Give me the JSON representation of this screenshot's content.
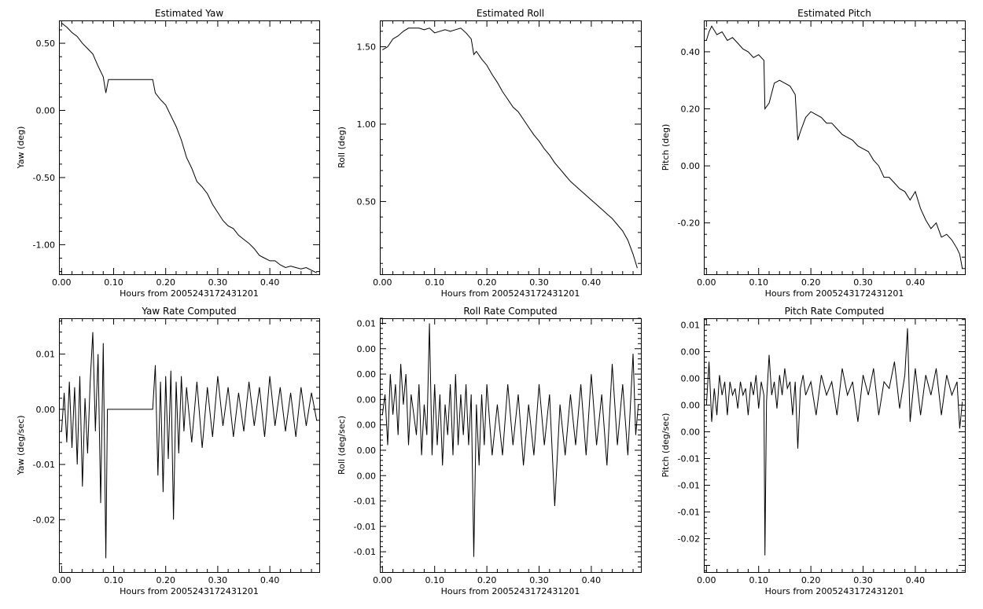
{
  "chart_data": [
    {
      "type": "line",
      "title": "Estimated Yaw",
      "xlabel": "Hours from 2005243172431201",
      "ylabel": "Yaw (deg)",
      "xlim": [
        -0.005,
        0.495
      ],
      "ylim": [
        -1.22,
        0.67
      ],
      "xticks": [
        0.0,
        0.1,
        0.2,
        0.3,
        0.4
      ],
      "xtick_labels": [
        "0.00",
        "0.10",
        "0.20",
        "0.30",
        "0.40"
      ],
      "yticks": [
        0.5,
        0.0,
        -0.5,
        -1.0
      ],
      "ytick_labels": [
        "0.50",
        "0.00",
        "-0.50",
        "-1.00"
      ],
      "x": [
        0.0,
        0.01,
        0.02,
        0.03,
        0.04,
        0.05,
        0.06,
        0.07,
        0.08,
        0.085,
        0.09,
        0.1,
        0.12,
        0.15,
        0.17,
        0.175,
        0.18,
        0.19,
        0.2,
        0.21,
        0.22,
        0.23,
        0.24,
        0.25,
        0.26,
        0.27,
        0.28,
        0.29,
        0.3,
        0.31,
        0.32,
        0.33,
        0.34,
        0.35,
        0.36,
        0.37,
        0.38,
        0.39,
        0.4,
        0.41,
        0.42,
        0.43,
        0.44,
        0.45,
        0.46,
        0.47,
        0.48,
        0.485,
        0.49
      ],
      "y": [
        0.65,
        0.62,
        0.58,
        0.55,
        0.5,
        0.46,
        0.42,
        0.33,
        0.25,
        0.13,
        0.23,
        0.23,
        0.23,
        0.23,
        0.23,
        0.23,
        0.13,
        0.08,
        0.04,
        -0.04,
        -0.12,
        -0.22,
        -0.35,
        -0.43,
        -0.53,
        -0.57,
        -0.62,
        -0.7,
        -0.76,
        -0.82,
        -0.86,
        -0.88,
        -0.93,
        -0.96,
        -0.99,
        -1.03,
        -1.08,
        -1.1,
        -1.12,
        -1.12,
        -1.15,
        -1.17,
        -1.16,
        -1.17,
        -1.18,
        -1.17,
        -1.19,
        -1.2,
        -1.21
      ]
    },
    {
      "type": "line",
      "title": "Estimated Roll",
      "xlabel": "Hours from 2005243172431201",
      "ylabel": "Roll (deg)",
      "xlim": [
        -0.005,
        0.495
      ],
      "ylim": [
        0.03,
        1.67
      ],
      "xticks": [
        0.0,
        0.1,
        0.2,
        0.3,
        0.4
      ],
      "xtick_labels": [
        "0.00",
        "0.10",
        "0.20",
        "0.30",
        "0.40"
      ],
      "yticks": [
        1.5,
        1.0,
        0.5
      ],
      "ytick_labels": [
        "1.50",
        "1.00",
        "0.50"
      ],
      "x": [
        0.0,
        0.01,
        0.02,
        0.03,
        0.04,
        0.05,
        0.06,
        0.07,
        0.08,
        0.09,
        0.1,
        0.11,
        0.12,
        0.13,
        0.14,
        0.15,
        0.16,
        0.17,
        0.175,
        0.18,
        0.19,
        0.2,
        0.21,
        0.22,
        0.23,
        0.24,
        0.25,
        0.26,
        0.27,
        0.28,
        0.29,
        0.3,
        0.31,
        0.32,
        0.33,
        0.34,
        0.35,
        0.36,
        0.37,
        0.38,
        0.39,
        0.4,
        0.41,
        0.42,
        0.43,
        0.44,
        0.45,
        0.46,
        0.47,
        0.48,
        0.488
      ],
      "y": [
        1.48,
        1.5,
        1.55,
        1.57,
        1.6,
        1.62,
        1.62,
        1.62,
        1.61,
        1.62,
        1.59,
        1.6,
        1.61,
        1.6,
        1.61,
        1.62,
        1.59,
        1.55,
        1.45,
        1.47,
        1.42,
        1.38,
        1.32,
        1.27,
        1.21,
        1.16,
        1.11,
        1.08,
        1.03,
        0.98,
        0.93,
        0.89,
        0.84,
        0.8,
        0.75,
        0.71,
        0.67,
        0.63,
        0.6,
        0.57,
        0.54,
        0.51,
        0.48,
        0.45,
        0.42,
        0.39,
        0.35,
        0.31,
        0.25,
        0.16,
        0.07
      ]
    },
    {
      "type": "line",
      "title": "Estimated Pitch",
      "xlabel": "Hours from 2005243172431201",
      "ylabel": "Pitch (deg)",
      "xlim": [
        -0.005,
        0.495
      ],
      "ylim": [
        -0.38,
        0.51
      ],
      "xticks": [
        0.0,
        0.1,
        0.2,
        0.3,
        0.4
      ],
      "xtick_labels": [
        "0.00",
        "0.10",
        "0.20",
        "0.30",
        "0.40"
      ],
      "yticks": [
        0.4,
        0.2,
        0.0,
        -0.2
      ],
      "ytick_labels": [
        "0.40",
        "0.20",
        "0.00",
        "-0.20"
      ],
      "x": [
        0.0,
        0.005,
        0.01,
        0.02,
        0.03,
        0.04,
        0.05,
        0.06,
        0.07,
        0.08,
        0.09,
        0.1,
        0.11,
        0.112,
        0.12,
        0.13,
        0.14,
        0.15,
        0.16,
        0.17,
        0.175,
        0.18,
        0.19,
        0.2,
        0.21,
        0.22,
        0.23,
        0.24,
        0.25,
        0.26,
        0.27,
        0.28,
        0.29,
        0.3,
        0.31,
        0.32,
        0.33,
        0.34,
        0.35,
        0.36,
        0.37,
        0.38,
        0.39,
        0.4,
        0.41,
        0.42,
        0.43,
        0.44,
        0.45,
        0.46,
        0.47,
        0.48,
        0.485,
        0.49
      ],
      "y": [
        0.44,
        0.47,
        0.49,
        0.46,
        0.47,
        0.44,
        0.45,
        0.43,
        0.41,
        0.4,
        0.38,
        0.39,
        0.37,
        0.2,
        0.22,
        0.29,
        0.3,
        0.29,
        0.28,
        0.25,
        0.09,
        0.12,
        0.17,
        0.19,
        0.18,
        0.17,
        0.15,
        0.15,
        0.13,
        0.11,
        0.1,
        0.09,
        0.07,
        0.06,
        0.05,
        0.02,
        0.0,
        -0.04,
        -0.04,
        -0.06,
        -0.08,
        -0.09,
        -0.12,
        -0.09,
        -0.15,
        -0.19,
        -0.22,
        -0.2,
        -0.25,
        -0.24,
        -0.26,
        -0.29,
        -0.31,
        -0.36
      ]
    },
    {
      "type": "line",
      "title": "Yaw Rate Computed",
      "xlabel": "Hours from 2005243172431201",
      "ylabel": "Yaw (deg/sec)",
      "xlim": [
        -0.005,
        0.495
      ],
      "ylim": [
        -0.0295,
        0.0165
      ],
      "xticks": [
        0.0,
        0.1,
        0.2,
        0.3,
        0.4
      ],
      "xtick_labels": [
        "0.00",
        "0.10",
        "0.20",
        "0.30",
        "0.40"
      ],
      "yticks": [
        0.01,
        0.0,
        -0.01,
        -0.02
      ],
      "ytick_labels": [
        "0.01",
        "0.00",
        "-0.01",
        "-0.02"
      ],
      "x": [
        0.0,
        0.005,
        0.01,
        0.015,
        0.02,
        0.025,
        0.03,
        0.035,
        0.04,
        0.045,
        0.05,
        0.055,
        0.06,
        0.065,
        0.07,
        0.075,
        0.08,
        0.085,
        0.088,
        0.092,
        0.1,
        0.12,
        0.15,
        0.175,
        0.18,
        0.185,
        0.19,
        0.195,
        0.2,
        0.205,
        0.21,
        0.215,
        0.22,
        0.225,
        0.23,
        0.235,
        0.24,
        0.25,
        0.26,
        0.27,
        0.28,
        0.29,
        0.3,
        0.31,
        0.32,
        0.33,
        0.34,
        0.35,
        0.36,
        0.37,
        0.38,
        0.39,
        0.4,
        0.41,
        0.42,
        0.43,
        0.44,
        0.45,
        0.46,
        0.47,
        0.48,
        0.49
      ],
      "y": [
        -0.004,
        0.003,
        -0.006,
        0.005,
        -0.007,
        0.004,
        -0.01,
        0.006,
        -0.014,
        0.002,
        -0.008,
        0.005,
        0.014,
        -0.004,
        0.01,
        -0.017,
        0.012,
        -0.027,
        0.0,
        0.0,
        0.0,
        0.0,
        0.0,
        0.0,
        0.008,
        -0.012,
        0.005,
        -0.015,
        0.006,
        -0.009,
        0.007,
        -0.02,
        0.005,
        -0.008,
        0.006,
        -0.004,
        0.004,
        -0.006,
        0.005,
        -0.007,
        0.004,
        -0.005,
        0.006,
        -0.003,
        0.004,
        -0.005,
        0.003,
        -0.004,
        0.005,
        -0.003,
        0.004,
        -0.005,
        0.006,
        -0.003,
        0.004,
        -0.004,
        0.003,
        -0.005,
        0.004,
        -0.003,
        0.003,
        -0.002
      ]
    },
    {
      "type": "line",
      "title": "Roll Rate Computed",
      "xlabel": "Hours from 2005243172431201",
      "ylabel": "Roll (deg/sec)",
      "xlim": [
        -0.005,
        0.495
      ],
      "ylim": [
        -0.0145,
        0.0105
      ],
      "xticks": [
        0.0,
        0.1,
        0.2,
        0.3,
        0.4
      ],
      "xtick_labels": [
        "0.00",
        "0.10",
        "0.20",
        "0.30",
        "0.40"
      ],
      "yticks": [
        0.01,
        0.0075,
        0.005,
        0.0025,
        0.0,
        -0.0025,
        -0.005,
        -0.0075,
        -0.01,
        -0.0125
      ],
      "ytick_labels": [
        "0.01",
        "0.00",
        "0.00",
        "0.00",
        "0.00",
        "0.00",
        "0.00",
        "-0.01",
        "-0.01",
        "-0.01"
      ],
      "x": [
        0.0,
        0.005,
        0.01,
        0.015,
        0.02,
        0.025,
        0.03,
        0.035,
        0.04,
        0.045,
        0.05,
        0.055,
        0.06,
        0.065,
        0.07,
        0.075,
        0.08,
        0.085,
        0.09,
        0.095,
        0.1,
        0.105,
        0.11,
        0.115,
        0.12,
        0.125,
        0.13,
        0.135,
        0.14,
        0.145,
        0.15,
        0.155,
        0.16,
        0.165,
        0.17,
        0.175,
        0.18,
        0.185,
        0.19,
        0.195,
        0.2,
        0.21,
        0.22,
        0.23,
        0.24,
        0.25,
        0.26,
        0.27,
        0.28,
        0.29,
        0.3,
        0.31,
        0.32,
        0.33,
        0.34,
        0.35,
        0.36,
        0.37,
        0.38,
        0.39,
        0.4,
        0.41,
        0.42,
        0.43,
        0.44,
        0.45,
        0.46,
        0.47,
        0.48,
        0.485,
        0.49
      ],
      "y": [
        0.001,
        0.003,
        -0.002,
        0.005,
        0.001,
        0.004,
        -0.001,
        0.006,
        0.002,
        0.005,
        -0.002,
        0.003,
        0.001,
        -0.001,
        0.004,
        -0.003,
        0.002,
        -0.001,
        0.01,
        -0.003,
        0.004,
        -0.002,
        0.003,
        -0.004,
        0.002,
        -0.001,
        0.004,
        -0.003,
        0.005,
        -0.002,
        0.003,
        -0.001,
        0.004,
        -0.002,
        0.003,
        -0.013,
        0.002,
        -0.004,
        0.003,
        -0.002,
        0.004,
        -0.003,
        0.002,
        -0.003,
        0.004,
        -0.002,
        0.003,
        -0.004,
        0.002,
        -0.003,
        0.004,
        -0.002,
        0.003,
        -0.008,
        0.002,
        -0.003,
        0.003,
        -0.002,
        0.004,
        -0.003,
        0.005,
        -0.002,
        0.003,
        -0.004,
        0.006,
        -0.002,
        0.004,
        -0.003,
        0.007,
        -0.001,
        0.002
      ]
    },
    {
      "type": "line",
      "title": "Pitch Rate Computed",
      "xlabel": "Hours from 2005243172431201",
      "ylabel": "Pitch (deg/sec)",
      "xlim": [
        -0.005,
        0.495
      ],
      "ylim": [
        -0.0255,
        0.0125
      ],
      "xticks": [
        0.0,
        0.1,
        0.2,
        0.3,
        0.4
      ],
      "xtick_labels": [
        "0.00",
        "0.10",
        "0.20",
        "0.30",
        "0.40"
      ],
      "yticks": [
        0.0115,
        0.0075,
        0.0035,
        -0.0005,
        -0.0045,
        -0.0085,
        -0.0125,
        -0.0165,
        -0.0205
      ],
      "ytick_labels": [
        "0.01",
        "0.00",
        "0.00",
        "0.00",
        "0.00",
        "-0.01",
        "-0.01",
        "-0.01",
        "-0.02"
      ],
      "x": [
        0.0,
        0.005,
        0.01,
        0.015,
        0.02,
        0.025,
        0.03,
        0.035,
        0.04,
        0.045,
        0.05,
        0.055,
        0.06,
        0.065,
        0.07,
        0.075,
        0.08,
        0.085,
        0.09,
        0.095,
        0.1,
        0.105,
        0.11,
        0.112,
        0.115,
        0.12,
        0.125,
        0.13,
        0.135,
        0.14,
        0.145,
        0.15,
        0.155,
        0.16,
        0.165,
        0.17,
        0.175,
        0.18,
        0.185,
        0.19,
        0.2,
        0.21,
        0.22,
        0.23,
        0.24,
        0.25,
        0.26,
        0.27,
        0.28,
        0.29,
        0.3,
        0.31,
        0.32,
        0.33,
        0.34,
        0.35,
        0.36,
        0.37,
        0.38,
        0.385,
        0.39,
        0.4,
        0.41,
        0.42,
        0.43,
        0.44,
        0.45,
        0.46,
        0.47,
        0.48,
        0.485,
        0.49
      ],
      "y": [
        -0.0005,
        0.006,
        -0.003,
        0.002,
        -0.002,
        0.004,
        0.001,
        0.003,
        -0.002,
        0.003,
        0.001,
        0.002,
        -0.001,
        0.003,
        0.001,
        0.002,
        -0.002,
        0.003,
        0.001,
        0.004,
        -0.001,
        0.003,
        0.001,
        -0.023,
        0.0,
        0.007,
        0.001,
        0.003,
        -0.001,
        0.004,
        0.001,
        0.005,
        0.002,
        0.003,
        -0.002,
        0.003,
        -0.007,
        0.002,
        0.004,
        0.001,
        0.003,
        -0.002,
        0.004,
        0.001,
        0.003,
        -0.002,
        0.005,
        0.001,
        0.003,
        -0.003,
        0.004,
        0.001,
        0.005,
        -0.002,
        0.003,
        0.002,
        0.006,
        -0.001,
        0.004,
        0.011,
        -0.003,
        0.005,
        -0.002,
        0.004,
        0.001,
        0.005,
        -0.002,
        0.004,
        0.001,
        0.003,
        -0.004,
        0.0
      ]
    }
  ]
}
